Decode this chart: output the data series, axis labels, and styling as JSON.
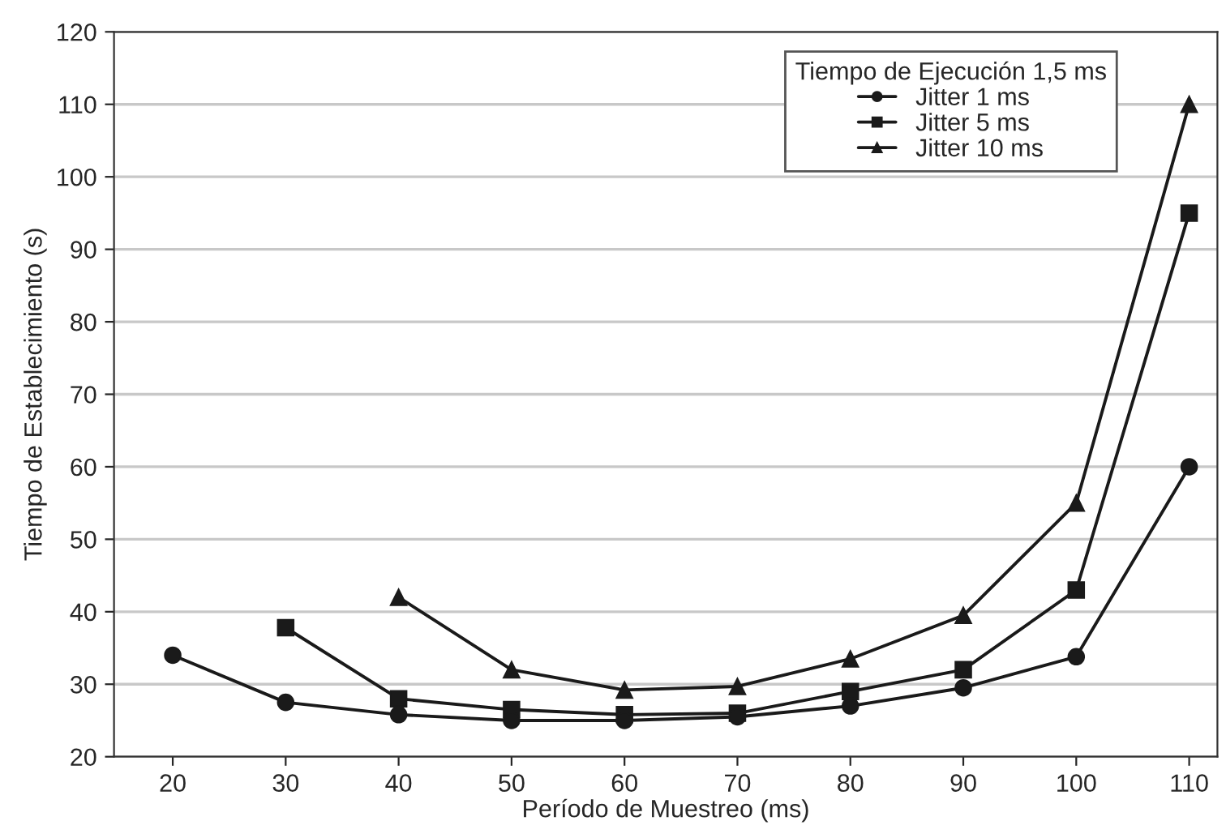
{
  "chart_data": {
    "type": "line",
    "xlabel": "Período de Muestreo (ms)",
    "ylabel": "Tiempo de Establecimiento (s)",
    "legend_title": "Tiempo de Ejecución 1,5 ms",
    "series": [
      {
        "name": "Jitter 1 ms",
        "color": "#1a1a1a",
        "marker": "circle",
        "x": [
          20,
          30,
          40,
          50,
          60,
          70,
          80,
          90,
          100,
          110
        ],
        "values": [
          34,
          27.5,
          25.8,
          25,
          25,
          25.5,
          27,
          29.5,
          33.8,
          60
        ]
      },
      {
        "name": "Jitter 5 ms",
        "color": "#1a1a1a",
        "marker": "square",
        "x": [
          30,
          40,
          50,
          60,
          70,
          80,
          90,
          100,
          110
        ],
        "values": [
          37.8,
          28,
          26.5,
          25.8,
          26,
          29,
          32,
          43,
          95
        ]
      },
      {
        "name": "Jitter 10 ms",
        "color": "#1a1a1a",
        "marker": "triangle",
        "x": [
          40,
          50,
          60,
          70,
          80,
          90,
          100,
          110
        ],
        "values": [
          42,
          32,
          29.2,
          29.7,
          33.5,
          39.5,
          55,
          110
        ]
      }
    ],
    "xlim": [
      14.8,
      112.5
    ],
    "xticks": [
      20,
      30,
      40,
      50,
      60,
      70,
      80,
      90,
      100,
      110
    ],
    "ylim": [
      20,
      120
    ],
    "yticks": [
      20,
      30,
      40,
      50,
      60,
      70,
      80,
      90,
      100,
      110,
      120
    ],
    "grid": "y",
    "legend": "top right",
    "line_style": "solid"
  }
}
